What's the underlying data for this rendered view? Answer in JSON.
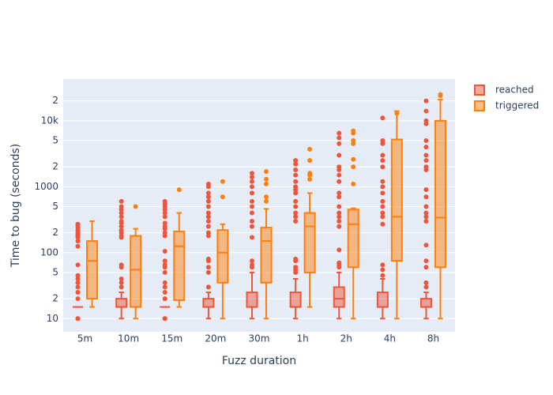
{
  "chart_data": {
    "type": "box",
    "x_label": "Fuzz duration",
    "y_label": "Time to bug (seconds)",
    "categories": [
      "5m",
      "10m",
      "15m",
      "20m",
      "30m",
      "1h",
      "2h",
      "4h",
      "8h"
    ],
    "log_y": true,
    "grid": true,
    "legend": "top-right",
    "ylim": [
      6.3,
      43000
    ],
    "yticks": [
      10,
      {
        "value": 20,
        "label": "2"
      },
      {
        "value": 50,
        "label": "5"
      },
      100,
      {
        "value": 200,
        "label": "2"
      },
      {
        "value": 500,
        "label": "5"
      },
      1000,
      {
        "value": 2000,
        "label": "2"
      },
      {
        "value": 5000,
        "label": "5"
      },
      {
        "value": 10000,
        "label": "10k"
      },
      {
        "value": 20000,
        "label": "2"
      }
    ],
    "series": [
      {
        "name": "reached",
        "color": "#ef553b",
        "boxes": [
          {
            "min": 15,
            "q1": 15,
            "median": 15,
            "q3": 15,
            "max": 15,
            "outliers": [
              10,
              10,
              20,
              25,
              30,
              35,
              40,
              45,
              65,
              125,
              150,
              170,
              180,
              190,
              200,
              220,
              240,
              260,
              270
            ]
          },
          {
            "min": 10,
            "q1": 15,
            "median": 15,
            "q3": 20,
            "max": 25,
            "outliers": [
              30,
              35,
              40,
              60,
              65,
              170,
              180,
              200,
              220,
              250,
              280,
              300,
              350,
              400,
              450,
              500,
              600
            ]
          },
          {
            "min": 15,
            "q1": 15,
            "median": 15,
            "q3": 15,
            "max": 15,
            "outliers": [
              10,
              10,
              20,
              25,
              30,
              35,
              50,
              60,
              65,
              75,
              105,
              180,
              200,
              230,
              250,
              280,
              350,
              400,
              450,
              500,
              550,
              600
            ]
          },
          {
            "min": 10,
            "q1": 15,
            "median": 15,
            "q3": 20,
            "max": 25,
            "outliers": [
              30,
              50,
              60,
              75,
              80,
              180,
              200,
              250,
              300,
              350,
              400,
              500,
              600,
              700,
              800,
              1000,
              1100
            ]
          },
          {
            "min": 10,
            "q1": 15,
            "median": 15,
            "q3": 25,
            "max": 50,
            "outliers": [
              60,
              65,
              75,
              170,
              250,
              300,
              400,
              500,
              600,
              800,
              1000,
              1200,
              1400,
              1600
            ]
          },
          {
            "min": 10,
            "q1": 15,
            "median": 15,
            "q3": 25,
            "max": 40,
            "outliers": [
              50,
              55,
              60,
              75,
              80,
              300,
              350,
              400,
              500,
              600,
              800,
              900,
              1000,
              1200,
              1500,
              1800,
              2200,
              2500
            ]
          },
          {
            "min": 10,
            "q1": 15,
            "median": 20,
            "q3": 30,
            "max": 50,
            "outliers": [
              60,
              65,
              70,
              110,
              250,
              300,
              350,
              400,
              500,
              700,
              800,
              1200,
              1500,
              1800,
              2000,
              3000,
              4500,
              5500,
              6500
            ]
          },
          {
            "min": 10,
            "q1": 15,
            "median": 15,
            "q3": 25,
            "max": 40,
            "outliers": [
              45,
              55,
              65,
              270,
              350,
              400,
              500,
              600,
              800,
              1000,
              1200,
              2000,
              2500,
              3000,
              4500,
              5000,
              11000
            ]
          },
          {
            "min": 10,
            "q1": 15,
            "median": 15,
            "q3": 20,
            "max": 25,
            "outliers": [
              30,
              35,
              60,
              75,
              130,
              300,
              350,
              400,
              500,
              700,
              900,
              1800,
              2000,
              2500,
              3000,
              4000,
              5000,
              9000,
              10000,
              14000,
              20000
            ]
          }
        ]
      },
      {
        "name": "triggered",
        "color": "#ff7f0e",
        "boxes": [
          {
            "min": 15,
            "q1": 20,
            "median": 75,
            "q3": 150,
            "max": 300,
            "outliers": []
          },
          {
            "min": 10,
            "q1": 15,
            "median": 55,
            "q3": 180,
            "max": 230,
            "outliers": [
              500
            ]
          },
          {
            "min": 15,
            "q1": 19,
            "median": 125,
            "q3": 210,
            "max": 400,
            "outliers": [
              900
            ]
          },
          {
            "min": 10,
            "q1": 35,
            "median": 100,
            "q3": 220,
            "max": 270,
            "outliers": [
              700,
              1200
            ]
          },
          {
            "min": 10,
            "q1": 35,
            "median": 150,
            "q3": 240,
            "max": 460,
            "outliers": [
              600,
              700,
              1100,
              1300,
              1700
            ]
          },
          {
            "min": 15,
            "q1": 50,
            "median": 250,
            "q3": 400,
            "max": 800,
            "outliers": [
              1300,
              1500,
              1600,
              2500,
              3700
            ]
          },
          {
            "min": 10,
            "q1": 60,
            "median": 270,
            "q3": 450,
            "max": 470,
            "outliers": [
              1100,
              2000,
              2600,
              4500,
              5000,
              6500,
              7000
            ]
          },
          {
            "min": 10,
            "q1": 75,
            "median": 350,
            "q3": 5200,
            "max": 14000,
            "outliers": [
              13000
            ]
          },
          {
            "min": 10,
            "q1": 60,
            "median": 340,
            "q3": 10000,
            "max": 21000,
            "outliers": [
              24000,
              25000
            ]
          }
        ]
      }
    ]
  }
}
